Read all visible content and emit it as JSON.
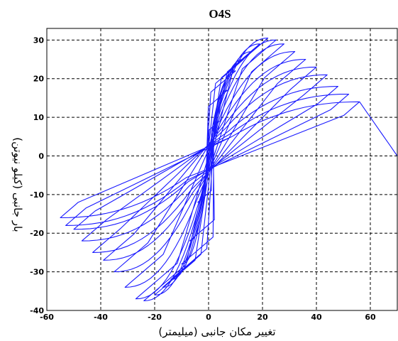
{
  "chart_data": {
    "type": "line",
    "title": "O4S",
    "xlabel": "تغییر مکان جانبی    (میلیمتر)",
    "ylabel": "بار جانبی    (کیلو نیوتن)",
    "xlim": [
      -60,
      70
    ],
    "ylim": [
      -40,
      33
    ],
    "xticks": [
      "-60",
      "-40",
      "-20",
      "0",
      "20",
      "40",
      "60"
    ],
    "yticks": [
      "30",
      "20",
      "10",
      "0",
      "-10",
      "-20",
      "-30",
      "-40"
    ],
    "grid": true,
    "line_color": "#1a1aff",
    "series": [
      {
        "values_description": "",
        "hysteresis_loops": [
          {
            "amp_pos": 4,
            "fmax": 9,
            "amp_neg": -4,
            "fmin": -12
          },
          {
            "amp_pos": 7,
            "fmax": 17,
            "amp_neg": -7,
            "fmin": -22
          },
          {
            "amp_pos": 10,
            "fmax": 22,
            "amp_neg": -10,
            "fmin": -28
          },
          {
            "amp_pos": 13,
            "fmax": 25,
            "amp_neg": -14,
            "fmin": -32
          },
          {
            "amp_pos": 16,
            "fmax": 27,
            "amp_neg": -17,
            "fmin": -34
          },
          {
            "amp_pos": 19,
            "fmax": 29,
            "amp_neg": -20,
            "fmin": -36
          },
          {
            "amp_pos": 22,
            "fmax": 30.5,
            "amp_neg": -24,
            "fmin": -37.5
          },
          {
            "amp_pos": 25,
            "fmax": 30,
            "amp_neg": -27,
            "fmin": -37
          },
          {
            "amp_pos": 28,
            "fmax": 29,
            "amp_neg": -31,
            "fmin": -34
          },
          {
            "amp_pos": 32,
            "fmax": 27,
            "amp_neg": -35,
            "fmin": -30
          },
          {
            "amp_pos": 36,
            "fmax": 25,
            "amp_neg": -39,
            "fmin": -27
          },
          {
            "amp_pos": 40,
            "fmax": 23,
            "amp_neg": -43,
            "fmin": -25
          },
          {
            "amp_pos": 44,
            "fmax": 21,
            "amp_neg": -47,
            "fmin": -22
          },
          {
            "amp_pos": 48,
            "fmax": 18,
            "amp_neg": -50,
            "fmin": -19
          },
          {
            "amp_pos": 52,
            "fmax": 16,
            "amp_neg": -53,
            "fmin": -18
          },
          {
            "amp_pos": 56,
            "fmax": 14,
            "amp_neg": -55,
            "fmin": -16
          }
        ],
        "final_unload": [
          [
            56,
            14
          ],
          [
            70,
            0
          ]
        ]
      }
    ]
  }
}
